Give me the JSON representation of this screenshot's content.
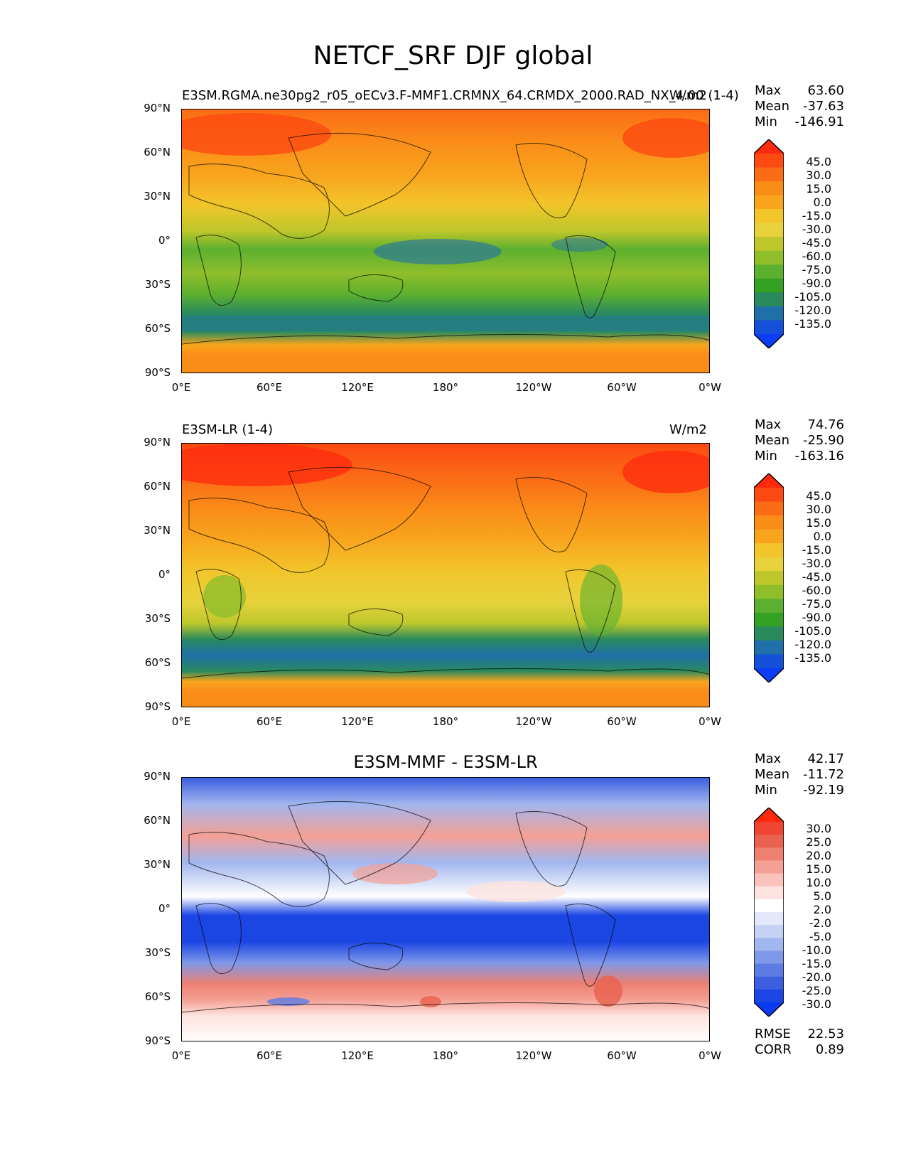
{
  "figure": {
    "title": "NETCF_SRF DJF global"
  },
  "axes": {
    "lat_labels": [
      "90°N",
      "60°N",
      "30°N",
      "0°",
      "30°S",
      "60°S",
      "90°S"
    ],
    "lon_labels": [
      "0°E",
      "60°E",
      "120°E",
      "180°",
      "120°W",
      "60°W",
      "0°W"
    ]
  },
  "panels": [
    {
      "title_left": "E3SM.RGMA.ne30pg2_r05_oECv3.F-MMF1.CRMNX_64.CRMDX_2000.RAD_NX_4.00 (1-4)",
      "title_center": "",
      "title_right": "W/m2",
      "stats": {
        "max_label": "Max",
        "max": "63.60",
        "mean_label": "Mean",
        "mean": "-37.63",
        "min_label": "Min",
        "min": "-146.91"
      },
      "colorbar": {
        "levels": [
          "45.0",
          "30.0",
          "15.0",
          "0.0",
          "-15.0",
          "-30.0",
          "-45.0",
          "-60.0",
          "-75.0",
          "-90.0",
          "-105.0",
          "-120.0",
          "-135.0"
        ],
        "colors": [
          "#ff2a0e",
          "#fc4a12",
          "#fb6c16",
          "#fa8c18",
          "#f8a51d",
          "#f2c52a",
          "#e7d23c",
          "#bdc72b",
          "#8fbe2b",
          "#5cb02f",
          "#34a024",
          "#2a8a5e",
          "#1f6fa8",
          "#1450d8",
          "#0a3df5"
        ]
      }
    },
    {
      "title_left": "E3SM-LR (1-4)",
      "title_center": "",
      "title_right": "W/m2",
      "stats": {
        "max_label": "Max",
        "max": "74.76",
        "mean_label": "Mean",
        "mean": "-25.90",
        "min_label": "Min",
        "min": "-163.16"
      },
      "colorbar": {
        "levels": [
          "45.0",
          "30.0",
          "15.0",
          "0.0",
          "-15.0",
          "-30.0",
          "-45.0",
          "-60.0",
          "-75.0",
          "-90.0",
          "-105.0",
          "-120.0",
          "-135.0"
        ],
        "colors": [
          "#ff2a0e",
          "#fc4a12",
          "#fb6c16",
          "#fa8c18",
          "#f8a51d",
          "#f2c52a",
          "#e7d23c",
          "#bdc72b",
          "#8fbe2b",
          "#5cb02f",
          "#34a024",
          "#2a8a5e",
          "#1f6fa8",
          "#1450d8",
          "#0a3df5"
        ]
      }
    },
    {
      "title_left": "",
      "title_center": "E3SM-MMF - E3SM-LR",
      "title_right": "",
      "stats": {
        "max_label": "Max",
        "max": "42.17",
        "mean_label": "Mean",
        "mean": "-11.72",
        "min_label": "Min",
        "min": "-92.19"
      },
      "colorbar": {
        "levels": [
          "30.0",
          "25.0",
          "20.0",
          "15.0",
          "10.0",
          "5.0",
          "2.0",
          "-2.0",
          "-5.0",
          "-10.0",
          "-15.0",
          "-20.0",
          "-25.0",
          "-30.0"
        ],
        "colors": [
          "#ff2a0e",
          "#f04434",
          "#e9614f",
          "#ee8072",
          "#f4a094",
          "#f9c3bb",
          "#fde3df",
          "#ffffff",
          "#e3e9fb",
          "#c4d2f6",
          "#a2b6ef",
          "#7f98e9",
          "#5d7ce4",
          "#3b5fdf",
          "#1c46e4",
          "#0a3af0"
        ]
      },
      "metrics": {
        "rmse_label": "RMSE",
        "rmse": "22.53",
        "corr_label": "CORR",
        "corr": "0.89"
      }
    }
  ]
}
